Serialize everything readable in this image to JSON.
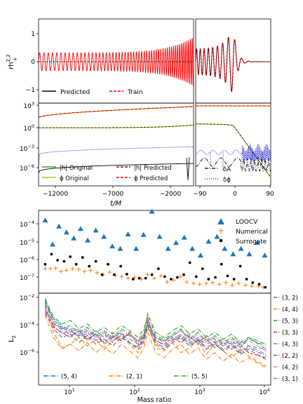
{
  "chart_data": [
    {
      "id": "top",
      "type": "line",
      "xlabel": "t/M",
      "panels": [
        {
          "id": "strain",
          "ylabel": "rh",
          "ylabel_sup": "2,2",
          "ylabel_sub": "+",
          "yticks": [
            "1",
            "0",
            "−1"
          ],
          "ylim": [
            -1.5,
            1.5
          ],
          "legend": [
            {
              "label": "Predicted",
              "color": "#000000",
              "dash": "solid"
            },
            {
              "label": "Train",
              "color": "#ff0000",
              "dash": "dashed"
            }
          ]
        },
        {
          "id": "amp-phase",
          "yscale": "log",
          "yticks": [
            "10^3",
            "10^0",
            "10^-3",
            "10^-6"
          ],
          "ylim_log10": [
            -8,
            3
          ],
          "legend": [
            {
              "label": "|h| Original",
              "color": "#2ca02c",
              "dash": "solid"
            },
            {
              "label": "|h| Predicted",
              "color": "#8b0000",
              "dash": "dashed"
            },
            {
              "label": "ϕ Original",
              "color": "#bcbd22",
              "dash": "solid"
            },
            {
              "label": "ϕ Predicted",
              "color": "#ff0000",
              "dash": "dashed"
            }
          ],
          "inset_legend": [
            {
              "label": "δA",
              "color": "#000000",
              "dash": "dashdot"
            },
            {
              "label": "δϕ",
              "color": "#0000cc",
              "dash": "dotted"
            }
          ]
        }
      ],
      "x_left_ticks": [
        "−7000",
        "−2000"
      ],
      "x_left_range": [
        -13500,
        0
      ],
      "x_left_tick_values": [
        -12000,
        -7000,
        -2000
      ],
      "x_left_first_tick": "−12000",
      "x_right_ticks": [
        "−90",
        "0",
        "90"
      ],
      "x_right_range": [
        -100,
        100
      ]
    },
    {
      "id": "loocv",
      "type": "scatter",
      "xscale": "log",
      "yscale": "log",
      "ylim_log10": [
        -7.75,
        -3.6
      ],
      "yticks": [
        "10^-4",
        "10^-5",
        "10^-6",
        "10^-7"
      ],
      "series": [
        {
          "name": "LOOCV",
          "marker": "triangle",
          "color": "#1f77b4",
          "x": [
            4,
            5.2,
            6.5,
            8.5,
            11,
            14,
            18,
            24,
            32,
            43,
            57,
            75,
            100,
            130,
            175,
            230,
            310,
            410,
            550,
            730,
            980,
            1300,
            1750,
            2300,
            3100,
            4100,
            5500,
            7300,
            9500
          ],
          "y": [
            8e-05,
            5e-06,
            4e-05,
            2e-05,
            1e-05,
            3e-05,
            8e-06,
            2.5e-05,
            1.2e-05,
            4e-06,
            3e-06,
            1.6e-05,
            3e-06,
            1.5e-05,
            0.00022,
            1.2e-05,
            3e-06,
            6e-06,
            1.1e-05,
            3e-06,
            1.4e-06,
            7e-06,
            1.2e-05,
            3e-06,
            1.6e-06,
            3e-06,
            1.6e-06,
            6e-06,
            1.4e-06
          ]
        },
        {
          "name": "Numerical",
          "marker": "plus",
          "color": "#ff7f0e",
          "x": [
            4,
            4.8,
            5.8,
            7,
            8.5,
            10.5,
            13,
            16,
            20,
            25,
            31,
            39,
            48,
            60,
            75,
            95,
            120,
            150,
            190,
            240,
            300,
            380,
            480,
            600,
            760,
            950,
            1200,
            1500,
            1900,
            2400,
            3000,
            3800,
            4800,
            6000,
            7600,
            9000
          ],
          "y": [
            3e-07,
            3e-07,
            3.2e-07,
            2.2e-07,
            2.5e-07,
            3e-07,
            2.8e-07,
            2.2e-07,
            2.5e-07,
            1.9e-07,
            1.5e-07,
            2e-07,
            1.4e-07,
            1.2e-07,
            1e-07,
            1.1e-07,
            9e-08,
            1.5e-07,
            1e-07,
            1.3e-07,
            6.5e-08,
            8e-08,
            1.2e-07,
            6.5e-08,
            5.5e-08,
            5e-08,
            5.5e-08,
            6e-08,
            5e-08,
            6e-08,
            4.5e-08,
            5.5e-08,
            4.5e-08,
            4e-08,
            4e-08,
            3.5e-08
          ]
        },
        {
          "name": "Surrogate",
          "marker": "dot",
          "color": "#000000",
          "x": [
            4,
            5,
            6.2,
            7.8,
            9.7,
            12,
            15,
            19,
            24,
            30,
            37,
            46,
            58,
            72,
            90,
            112,
            140,
            175,
            220,
            275,
            345,
            430,
            540,
            670,
            840,
            1050,
            1300,
            1650,
            2050,
            2550,
            3200,
            4000,
            5000,
            6200,
            7800,
            9700
          ],
          "y": [
            5e-07,
            1.6e-06,
            8e-07,
            7e-07,
            1.2e-06,
            5e-07,
            1.1e-06,
            4e-07,
            7e-07,
            1.5e-07,
            5e-07,
            1.5e-07,
            4e-07,
            1.6e-07,
            9e-08,
            1e-07,
            1e-07,
            1.5e-07,
            3e-07,
            1.2e-07,
            9e-08,
            1.1e-07,
            1.5e-07,
            6e-07,
            1.2e-07,
            3e-07,
            9e-08,
            1.1e-07,
            5e-07,
            1.3e-07,
            9e-08,
            4e-07,
            9e-08,
            6e-08,
            5e-08,
            3.5e-08
          ]
        }
      ]
    },
    {
      "id": "l2",
      "type": "line",
      "xscale": "log",
      "yscale": "log",
      "xlabel": "Mass ratio",
      "ylabel": "L",
      "ylabel_sub": "2",
      "ylim_log10": [
        -7.4,
        -2
      ],
      "xlim_log10": [
        0.5,
        4.07
      ],
      "yticks": [
        "10^-2",
        "10^-4",
        "10^-6"
      ],
      "xticks": [
        "10^1",
        "10^2",
        "10^3",
        "10^4"
      ],
      "legend_right": [
        {
          "label": "(3, 2)",
          "color": "#1f77b4"
        },
        {
          "label": "(4, 4)",
          "color": "#ff7f0e"
        },
        {
          "label": "(5, 3)",
          "color": "#2ca02c"
        },
        {
          "label": "(3, 3)",
          "color": "#d62728"
        },
        {
          "label": "(4, 3)",
          "color": "#9467bd"
        },
        {
          "label": "(2, 2)",
          "color": "#8c564b"
        },
        {
          "label": "(4, 2)",
          "color": "#e377c2"
        },
        {
          "label": "(3, 1)",
          "color": "#7f7f7f"
        }
      ],
      "legend_bottom": [
        {
          "label": "(5, 4)",
          "color": "#1f77b4"
        },
        {
          "label": "(2, 1)",
          "color": "#ff7f0e"
        },
        {
          "label": "(5, 5)",
          "color": "#2ca02c"
        }
      ],
      "series": [
        {
          "name": "(3, 2)",
          "color": "#1f77b4",
          "y": [
            -2.6,
            -3.5,
            -3.9,
            -4.2,
            -4.5,
            -4.2,
            -4.6,
            -4.3,
            -4.8,
            -4.4,
            -4.5,
            -4.9,
            -4.4,
            -4.1,
            -4.6,
            -4.8,
            -4.5,
            -4.2,
            -4.6,
            -4.9,
            -4.5,
            -4.7,
            -5.0,
            -4.8,
            -5.2,
            -4.6,
            -5.3
          ]
        },
        {
          "name": "(4, 4)",
          "color": "#ff7f0e",
          "y": [
            -2.7,
            -4.3,
            -5.2,
            -5.0,
            -4.6,
            -5.1,
            -4.7,
            -5.3,
            -4.8,
            -4.5,
            -5.0,
            -5.5,
            -4.9,
            -3.7,
            -5.2,
            -5.4,
            -4.9,
            -5.5,
            -5.2,
            -4.8,
            -5.6,
            -5.0,
            -5.4,
            -5.8,
            -5.3,
            -5.7,
            -6.3
          ]
        },
        {
          "name": "(5, 3)",
          "color": "#2ca02c",
          "y": [
            -2.5,
            -3.8,
            -4.1,
            -3.9,
            -4.3,
            -4.0,
            -4.5,
            -4.2,
            -4.6,
            -4.1,
            -4.4,
            -4.8,
            -4.3,
            -3.2,
            -4.5,
            -4.7,
            -4.4,
            -4.1,
            -4.7,
            -4.3,
            -4.8,
            -4.5,
            -4.9,
            -4.6,
            -5.0,
            -4.7,
            -5.1
          ]
        },
        {
          "name": "(3, 3)",
          "color": "#d62728",
          "y": [
            -2.8,
            -4.0,
            -4.3,
            -4.6,
            -4.2,
            -4.7,
            -4.4,
            -4.9,
            -4.5,
            -4.8,
            -4.3,
            -5.1,
            -4.6,
            -3.5,
            -4.8,
            -5.0,
            -4.6,
            -4.9,
            -4.5,
            -5.0,
            -4.7,
            -5.2,
            -4.9,
            -5.3,
            -5.0,
            -5.5,
            -5.8
          ]
        },
        {
          "name": "(4, 3)",
          "color": "#9467bd",
          "y": [
            -3.0,
            -3.9,
            -4.4,
            -4.1,
            -4.6,
            -4.3,
            -4.8,
            -4.4,
            -4.9,
            -4.5,
            -4.7,
            -5.0,
            -4.5,
            -3.8,
            -4.7,
            -5.1,
            -4.7,
            -4.4,
            -4.9,
            -4.6,
            -5.0,
            -4.8,
            -5.1,
            -4.9,
            -5.4,
            -5.1,
            -5.6
          ]
        },
        {
          "name": "(2, 2)",
          "color": "#8c564b",
          "y": [
            -3.2,
            -4.1,
            -4.6,
            -4.4,
            -4.9,
            -4.5,
            -5.0,
            -4.7,
            -5.1,
            -4.6,
            -4.9,
            -5.3,
            -4.8,
            -4.0,
            -5.0,
            -5.3,
            -4.9,
            -4.6,
            -5.1,
            -4.8,
            -5.3,
            -5.0,
            -5.4,
            -5.1,
            -5.6,
            -5.3,
            -5.9
          ]
        },
        {
          "name": "(4, 2)",
          "color": "#e377c2",
          "y": [
            -2.9,
            -3.7,
            -4.2,
            -4.0,
            -4.4,
            -4.1,
            -4.6,
            -4.3,
            -4.7,
            -4.2,
            -4.5,
            -4.9,
            -4.4,
            -3.6,
            -4.6,
            -4.9,
            -4.5,
            -4.2,
            -4.8,
            -4.4,
            -4.9,
            -4.6,
            -5.0,
            -4.7,
            -5.1,
            -4.8,
            -5.4
          ]
        },
        {
          "name": "(3, 1)",
          "color": "#7f7f7f",
          "y": [
            -3.1,
            -3.8,
            -4.0,
            -4.3,
            -4.1,
            -4.5,
            -4.2,
            -4.6,
            -4.3,
            -4.7,
            -4.4,
            -4.8,
            -4.5,
            -3.9,
            -4.6,
            -4.8,
            -4.5,
            -4.7,
            -4.4,
            -4.8,
            -4.6,
            -4.9,
            -4.7,
            -5.0,
            -4.8,
            -5.1,
            -5.3
          ]
        },
        {
          "name": "(5, 4)",
          "color": "#1f77b4",
          "y": [
            -2.4,
            -3.6,
            -4.0,
            -4.5,
            -4.2,
            -4.8,
            -4.4,
            -5.0,
            -4.6,
            -4.3,
            -4.9,
            -5.2,
            -4.7,
            -3.6,
            -4.9,
            -5.2,
            -4.8,
            -4.5,
            -5.0,
            -4.7,
            -5.2,
            -4.9,
            -5.3,
            -5.0,
            -5.5,
            -5.2,
            -5.7
          ]
        },
        {
          "name": "(2, 1)",
          "color": "#ff7f0e",
          "y": [
            -3.3,
            -4.6,
            -5.3,
            -5.0,
            -5.4,
            -4.9,
            -5.5,
            -5.1,
            -5.6,
            -5.0,
            -5.4,
            -5.8,
            -5.2,
            -4.3,
            -5.5,
            -5.8,
            -5.3,
            -5.0,
            -5.6,
            -5.2,
            -5.9,
            -5.5,
            -6.0,
            -5.6,
            -6.1,
            -5.8,
            -6.4
          ]
        },
        {
          "name": "(5, 5)",
          "color": "#2ca02c",
          "y": [
            -2.3,
            -3.4,
            -3.8,
            -3.6,
            -4.1,
            -3.8,
            -4.3,
            -4.0,
            -4.4,
            -3.9,
            -4.2,
            -4.6,
            -4.1,
            -3.3,
            -4.3,
            -4.6,
            -4.2,
            -3.9,
            -4.4,
            -4.1,
            -4.6,
            -4.3,
            -4.7,
            -4.4,
            -4.9,
            -4.6,
            -5.0
          ]
        }
      ],
      "x_log10": [
        0.6,
        0.73,
        0.86,
        0.99,
        1.12,
        1.25,
        1.38,
        1.51,
        1.64,
        1.77,
        1.9,
        2.03,
        2.12,
        2.18,
        2.3,
        2.43,
        2.56,
        2.69,
        2.82,
        2.95,
        3.08,
        3.21,
        3.34,
        3.47,
        3.6,
        3.73,
        4.0
      ]
    }
  ]
}
